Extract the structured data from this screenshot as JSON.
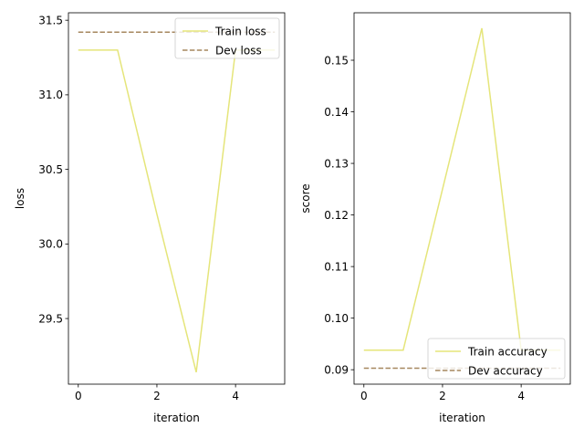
{
  "chart_data": [
    {
      "type": "line",
      "xlabel": "iteration",
      "ylabel": "loss",
      "xlim": [
        -0.25,
        5.25
      ],
      "ylim": [
        29.06,
        31.55
      ],
      "xticks": [
        0,
        2,
        4
      ],
      "xtick_labels": [
        "0",
        "2",
        "4"
      ],
      "yticks": [
        29.5,
        30.0,
        30.5,
        31.0,
        31.5
      ],
      "ytick_labels": [
        "29.5",
        "30.0",
        "30.5",
        "31.0",
        "31.5"
      ],
      "legend_position": "upper-right",
      "grid": false,
      "series": [
        {
          "name": "Train loss",
          "style": "solid",
          "color": "#e5e57a",
          "x": [
            0,
            1,
            2,
            3,
            4,
            5
          ],
          "y": [
            31.3,
            31.3,
            30.2,
            29.14,
            31.3,
            31.3
          ]
        },
        {
          "name": "Dev loss",
          "style": "dashed",
          "color": "#a6875f",
          "x": [
            0,
            1,
            2,
            3,
            4,
            5
          ],
          "y": [
            31.42,
            31.42,
            31.42,
            31.42,
            31.42,
            31.42
          ]
        }
      ]
    },
    {
      "type": "line",
      "xlabel": "iteration",
      "ylabel": "score",
      "xlim": [
        -0.25,
        5.25
      ],
      "ylim": [
        0.0872,
        0.1592
      ],
      "xticks": [
        0,
        2,
        4
      ],
      "xtick_labels": [
        "0",
        "2",
        "4"
      ],
      "yticks": [
        0.09,
        0.1,
        0.11,
        0.12,
        0.13,
        0.14,
        0.15
      ],
      "ytick_labels": [
        "0.09",
        "0.10",
        "0.11",
        "0.12",
        "0.13",
        "0.14",
        "0.15"
      ],
      "legend_position": "lower-right",
      "grid": false,
      "series": [
        {
          "name": "Train accuracy",
          "style": "solid",
          "color": "#e5e57a",
          "x": [
            0,
            1,
            2,
            3,
            4,
            5
          ],
          "y": [
            0.0938,
            0.0938,
            0.125,
            0.1562,
            0.0938,
            0.0938
          ]
        },
        {
          "name": "Dev accuracy",
          "style": "dashed",
          "color": "#a6875f",
          "x": [
            0,
            1,
            2,
            3,
            4,
            5
          ],
          "y": [
            0.0903,
            0.0903,
            0.0903,
            0.0903,
            0.0903,
            0.0903
          ]
        }
      ]
    }
  ]
}
